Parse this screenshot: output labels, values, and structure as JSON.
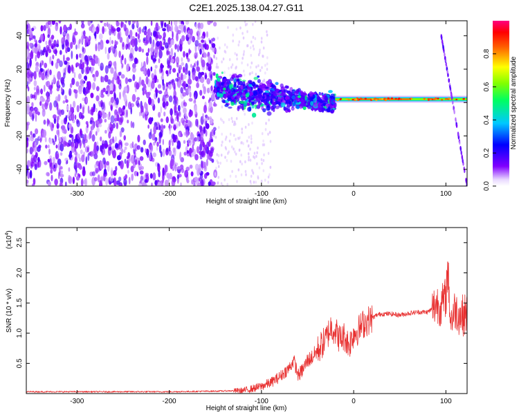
{
  "title": "C2E1.2025.138.04.27.G11",
  "chart_data": [
    {
      "type": "heatmap",
      "xlabel": "Height of straight line (km)",
      "ylabel": "Frequency (Hz)",
      "xlim": [
        -355,
        123
      ],
      "ylim": [
        -50,
        49
      ],
      "xticks": [
        -300,
        -200,
        -100,
        0,
        100
      ],
      "yticks": [
        -40,
        -20,
        0,
        20,
        40
      ],
      "colorbar": {
        "label": "Normalized spectral amplitude",
        "range": [
          0,
          1
        ],
        "ticks": [
          0.0,
          0.2,
          0.4,
          0.6,
          0.8
        ],
        "colormap": "rainbow (white → violet → blue → cyan → green → yellow → red → magenta)"
      },
      "features": [
        {
          "name": "scattered noise",
          "x_range": [
            -355,
            -150
          ],
          "freq_range": [
            -50,
            49
          ],
          "amplitude": 0.12
        },
        {
          "name": "broad band",
          "x_range": [
            -150,
            -20
          ],
          "freq_range": [
            -20,
            15
          ],
          "amplitude": 0.35
        },
        {
          "name": "narrow line",
          "x_range": [
            -20,
            123
          ],
          "frequency": 2,
          "amplitude": 0.85
        },
        {
          "name": "diagonal streak",
          "x_range": [
            95,
            123
          ],
          "freq_range": [
            -50,
            40
          ],
          "amplitude": 0.2
        }
      ]
    },
    {
      "type": "line",
      "xlabel": "Height of straight line (km)",
      "ylabel": "SNR (10 * v/v)",
      "y_multiplier": "(x10",
      "y_multiplier_exp": "4",
      "y_multiplier_close": ")",
      "xlim": [
        -355,
        123
      ],
      "ylim": [
        0,
        2.75
      ],
      "xticks": [
        -300,
        -200,
        -100,
        0,
        100
      ],
      "yticks": [
        0.5,
        1.0,
        1.5,
        2.0,
        2.5
      ],
      "ytick_labels": [
        "0.5",
        "1.0",
        "1.5",
        "2.0",
        "2.5"
      ],
      "color": "#e83030",
      "series": [
        {
          "x": [
            -355,
            -300,
            -250,
            -200,
            -150,
            -120,
            -110,
            -100,
            -90,
            -80,
            -70,
            -65,
            -60,
            -55,
            -50,
            -45,
            -40,
            -35,
            -30,
            -25,
            -20,
            -15,
            -10,
            -5,
            0,
            5,
            10,
            15,
            20,
            25,
            30,
            40,
            50,
            60,
            70,
            80,
            85,
            90,
            95,
            100,
            102,
            105,
            110,
            115,
            120,
            123
          ],
          "y": [
            0.03,
            0.03,
            0.03,
            0.03,
            0.04,
            0.05,
            0.08,
            0.12,
            0.18,
            0.28,
            0.42,
            0.55,
            0.3,
            0.4,
            0.55,
            0.6,
            0.7,
            0.8,
            0.9,
            1.1,
            1.05,
            0.9,
            0.95,
            0.8,
            1.0,
            1.05,
            1.15,
            1.2,
            1.25,
            1.3,
            1.32,
            1.32,
            1.3,
            1.33,
            1.35,
            1.35,
            1.4,
            1.5,
            1.45,
            1.6,
            2.1,
            1.2,
            1.4,
            1.3,
            1.3,
            1.35
          ]
        }
      ]
    }
  ]
}
